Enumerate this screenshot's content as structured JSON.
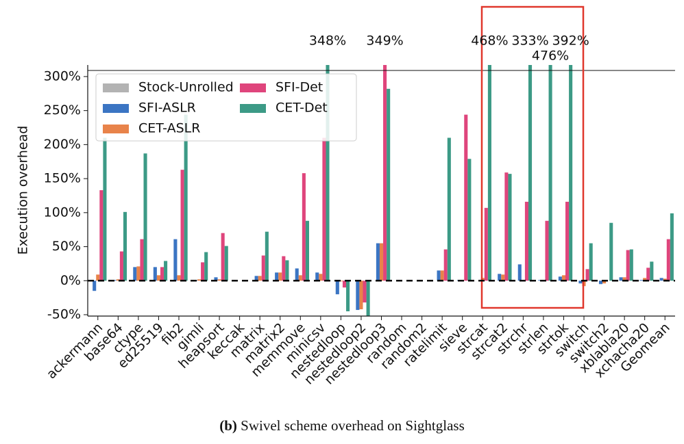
{
  "chart_data": {
    "type": "bar",
    "y_label": "Execution overhead",
    "categories": [
      "ackermann",
      "base64",
      "ctype",
      "ed25519",
      "fib2",
      "gimli",
      "heapsort",
      "keccak",
      "matrix",
      "matrix2",
      "memmove",
      "minicsv",
      "nestedloop",
      "nestedloop2",
      "nestedloop3",
      "random",
      "random2",
      "ratelimit",
      "sieve",
      "strcat",
      "strcat2",
      "strchr",
      "strlen",
      "strtok",
      "switch",
      "switch2",
      "xblabla20",
      "xchacha20",
      "Geomean"
    ],
    "series": [
      {
        "name": "Stock-Unrolled",
        "color": "#b3b3b3",
        "values": [
          0,
          0,
          0,
          0,
          0,
          0,
          0,
          0,
          0,
          0,
          0,
          0,
          0,
          0,
          0,
          0,
          0,
          0,
          0,
          0,
          0,
          0,
          0,
          0,
          0,
          0,
          0,
          0,
          0
        ]
      },
      {
        "name": "SFI-ASLR",
        "color": "#3b75c3",
        "values": [
          -15,
          1,
          20,
          20,
          61,
          1,
          5,
          0,
          7,
          12,
          18,
          12,
          -20,
          -43,
          55,
          0,
          0,
          15,
          1,
          0,
          10,
          24,
          1,
          6,
          -4,
          -5,
          5,
          1,
          4
        ]
      },
      {
        "name": "CET-ASLR",
        "color": "#e8834a",
        "values": [
          9,
          2,
          21,
          8,
          8,
          2,
          2,
          0,
          7,
          12,
          8,
          10,
          -1,
          -42,
          55,
          0,
          0,
          15,
          1,
          4,
          9,
          1,
          1,
          8,
          -8,
          -4,
          5,
          4,
          3
        ]
      },
      {
        "name": "SFI-Det",
        "color": "#df457c",
        "values": [
          133,
          43,
          61,
          20,
          163,
          27,
          70,
          0,
          37,
          36,
          158,
          210,
          -10,
          -32,
          349,
          0,
          0,
          46,
          244,
          107,
          159,
          116,
          88,
          116,
          17,
          0,
          45,
          19,
          61
        ],
        "value_labels": [
          null,
          null,
          null,
          null,
          null,
          null,
          null,
          null,
          null,
          null,
          null,
          null,
          null,
          null,
          "349%",
          null,
          null,
          null,
          null,
          null,
          null,
          null,
          null,
          null,
          null,
          null,
          null,
          null,
          null
        ]
      },
      {
        "name": "CET-Det",
        "color": "#3c9a86",
        "values": [
          210,
          101,
          187,
          29,
          244,
          42,
          51,
          0,
          72,
          30,
          88,
          348,
          -45,
          -53,
          282,
          0,
          0,
          210,
          179,
          468,
          157,
          333,
          476,
          392,
          55,
          85,
          46,
          28,
          99
        ],
        "value_labels": [
          null,
          null,
          null,
          null,
          null,
          null,
          null,
          null,
          null,
          null,
          null,
          "348%",
          null,
          null,
          null,
          null,
          null,
          null,
          null,
          "468%",
          null,
          "333%",
          "476%",
          "392%",
          null,
          null,
          null,
          null,
          null
        ]
      }
    ],
    "ylim": [
      -52,
      317
    ],
    "yticks": [
      {
        "value": -50,
        "label": "-50%"
      },
      {
        "value": 0,
        "label": "0%"
      },
      {
        "value": 50,
        "label": "50%"
      },
      {
        "value": 100,
        "label": "100%"
      },
      {
        "value": 150,
        "label": "150%"
      },
      {
        "value": 200,
        "label": "200%"
      },
      {
        "value": 250,
        "label": "250%"
      },
      {
        "value": 300,
        "label": "300%"
      }
    ],
    "legend": "upper left"
  },
  "caption_label": "(b)",
  "caption": "Swivel scheme overhead on Sightglass"
}
